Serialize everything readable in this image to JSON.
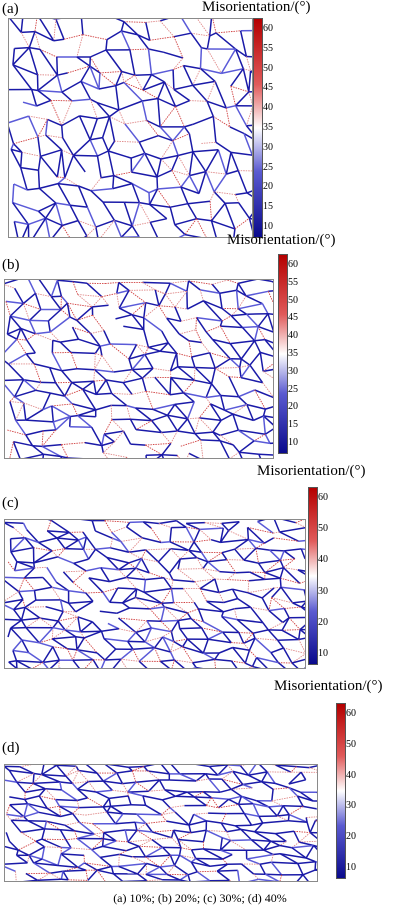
{
  "colorbar_title": "Misorientation/(°)",
  "colorbar_ticks": [
    "60",
    "55",
    "50",
    "45",
    "40",
    "35",
    "30",
    "25",
    "20",
    "15",
    "10"
  ],
  "colorbar_ticks_sparse": [
    "60",
    "50",
    "40",
    "30",
    "20",
    "10"
  ],
  "colorbar_colors": {
    "low": "#0a0a8c",
    "mid": "#ffffff",
    "high": "#b40000"
  },
  "panels": [
    {
      "label": "(a)",
      "strain": "10%"
    },
    {
      "label": "(b)",
      "strain": "20%"
    },
    {
      "label": "(c)",
      "strain": "30%"
    },
    {
      "label": "(d)",
      "strain": "40%"
    }
  ],
  "caption": "(a)  10%;  (b) 20%; (c) 30%; (d) 40%"
}
